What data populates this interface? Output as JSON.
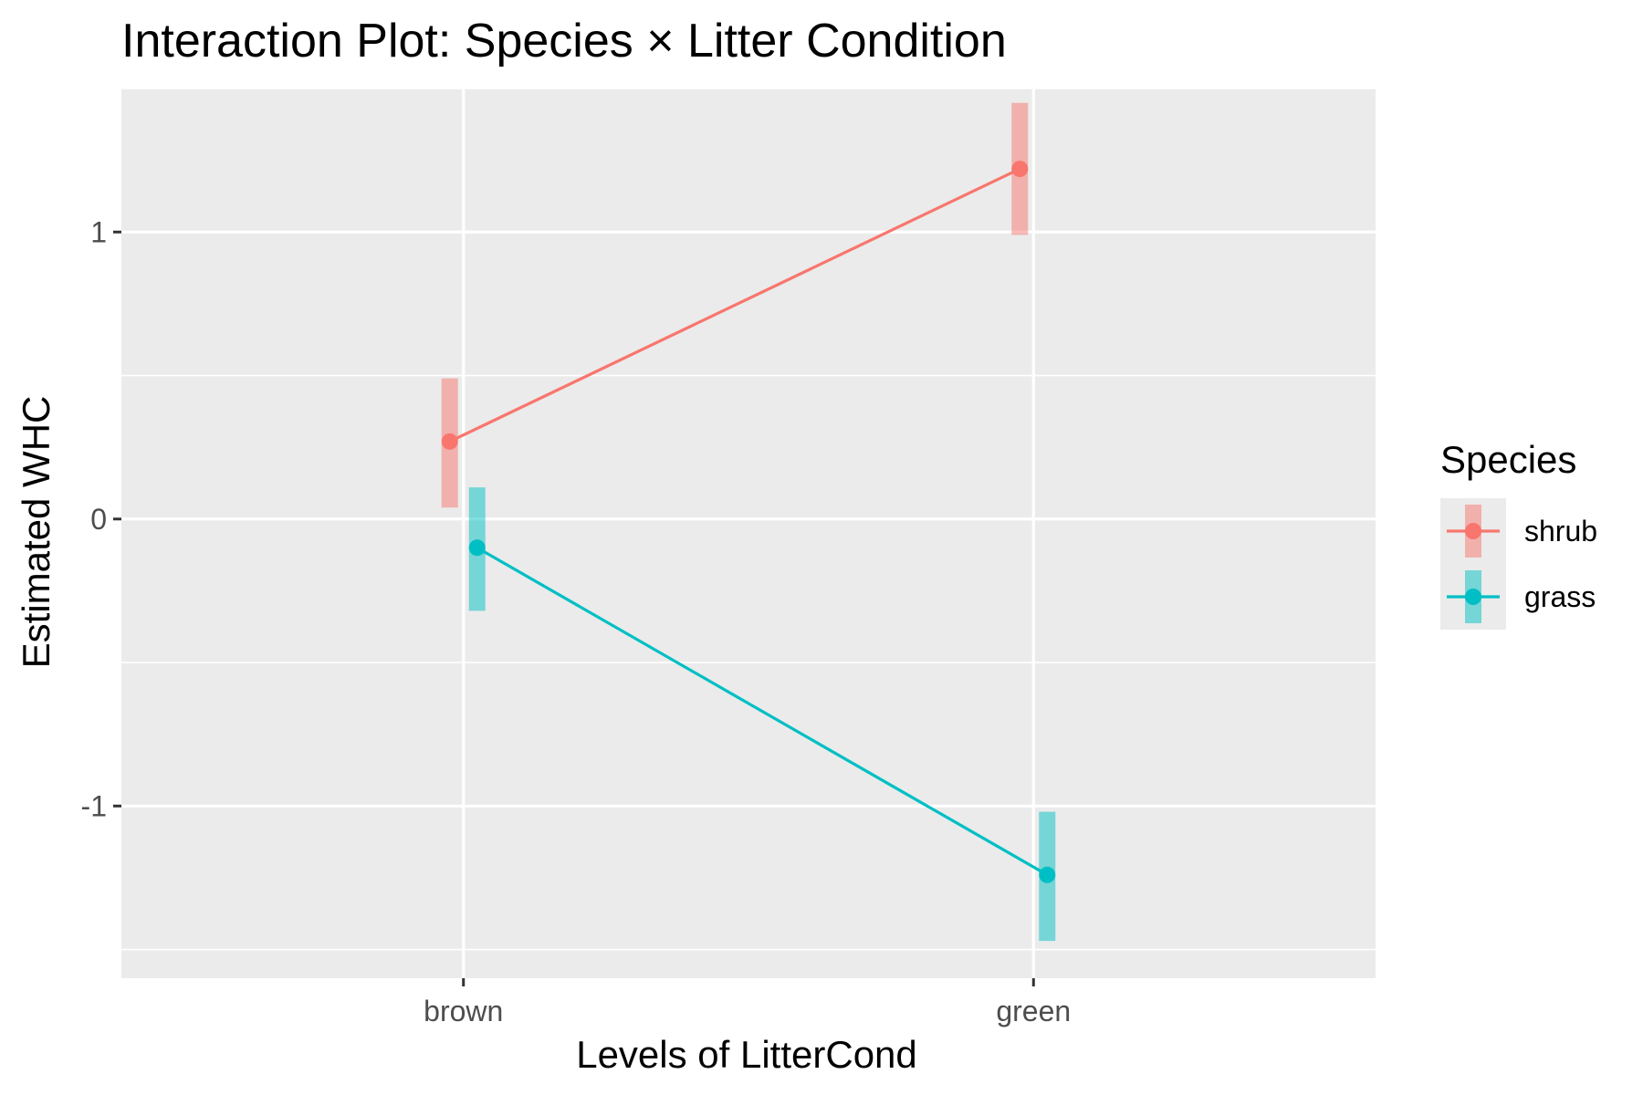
{
  "chart_data": {
    "type": "line",
    "title": "Interaction Plot: Species × Litter Condition",
    "xlabel": "Levels of LitterCond",
    "ylabel": "Estimated WHC",
    "categories": [
      "brown",
      "green"
    ],
    "ylim": [
      -1.6,
      1.5
    ],
    "y_ticks": [
      -1,
      0,
      1
    ],
    "y_tick_labels": [
      "-1",
      "0",
      "1"
    ],
    "grid": true,
    "legend": {
      "title": "Species",
      "placement": "right"
    },
    "series": [
      {
        "name": "shrub",
        "color": "#F8766D",
        "values": [
          0.27,
          1.22
        ],
        "ci_lower": [
          0.04,
          0.99
        ],
        "ci_upper": [
          0.49,
          1.45
        ]
      },
      {
        "name": "grass",
        "color": "#00BFC4",
        "values": [
          -0.1,
          -1.24
        ],
        "ci_lower": [
          -0.32,
          -1.47
        ],
        "ci_upper": [
          0.11,
          -1.02
        ]
      }
    ]
  }
}
